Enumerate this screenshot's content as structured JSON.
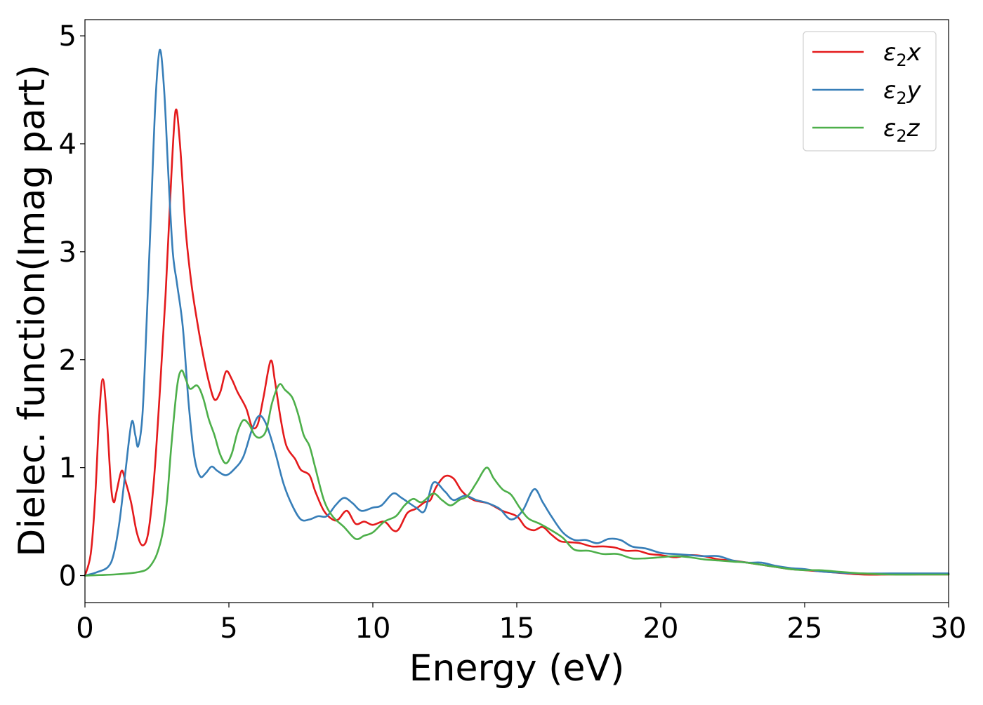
{
  "chart_data": {
    "type": "line",
    "xlabel": "Energy (eV)",
    "ylabel": "Dielec. function(Imag part)",
    "xlim": [
      0,
      30
    ],
    "ylim": [
      -0.25,
      5.15
    ],
    "xticks": [
      0,
      5,
      10,
      15,
      20,
      25,
      30
    ],
    "yticks": [
      0,
      1,
      2,
      3,
      4,
      5
    ],
    "grid": false,
    "legend_position": "top-right",
    "series": [
      {
        "name": "ε2x",
        "legend_base": "ε",
        "legend_sub": "2",
        "legend_suffix": "x",
        "color": "#e41a1c",
        "points": [
          [
            0,
            0
          ],
          [
            0.2,
            0.2
          ],
          [
            0.35,
            0.7
          ],
          [
            0.5,
            1.5
          ],
          [
            0.62,
            1.82
          ],
          [
            0.75,
            1.5
          ],
          [
            0.9,
            0.85
          ],
          [
            1.0,
            0.68
          ],
          [
            1.1,
            0.78
          ],
          [
            1.27,
            0.97
          ],
          [
            1.4,
            0.88
          ],
          [
            1.6,
            0.68
          ],
          [
            1.8,
            0.4
          ],
          [
            2.0,
            0.28
          ],
          [
            2.2,
            0.4
          ],
          [
            2.4,
            0.9
          ],
          [
            2.6,
            1.7
          ],
          [
            2.8,
            2.6
          ],
          [
            3.0,
            3.7
          ],
          [
            3.15,
            4.31
          ],
          [
            3.3,
            4.0
          ],
          [
            3.5,
            3.2
          ],
          [
            3.7,
            2.7
          ],
          [
            3.9,
            2.35
          ],
          [
            4.1,
            2.05
          ],
          [
            4.3,
            1.8
          ],
          [
            4.5,
            1.63
          ],
          [
            4.7,
            1.7
          ],
          [
            4.9,
            1.89
          ],
          [
            5.1,
            1.82
          ],
          [
            5.3,
            1.7
          ],
          [
            5.6,
            1.55
          ],
          [
            5.8,
            1.38
          ],
          [
            6.0,
            1.4
          ],
          [
            6.2,
            1.65
          ],
          [
            6.45,
            1.99
          ],
          [
            6.6,
            1.8
          ],
          [
            6.8,
            1.45
          ],
          [
            7.0,
            1.2
          ],
          [
            7.3,
            1.08
          ],
          [
            7.5,
            0.98
          ],
          [
            7.8,
            0.93
          ],
          [
            8.0,
            0.78
          ],
          [
            8.3,
            0.6
          ],
          [
            8.6,
            0.52
          ],
          [
            8.8,
            0.52
          ],
          [
            9.1,
            0.6
          ],
          [
            9.4,
            0.48
          ],
          [
            9.7,
            0.5
          ],
          [
            10.0,
            0.47
          ],
          [
            10.4,
            0.5
          ],
          [
            10.7,
            0.42
          ],
          [
            10.9,
            0.43
          ],
          [
            11.2,
            0.58
          ],
          [
            11.5,
            0.62
          ],
          [
            11.8,
            0.68
          ],
          [
            12.0,
            0.7
          ],
          [
            12.2,
            0.82
          ],
          [
            12.5,
            0.92
          ],
          [
            12.8,
            0.9
          ],
          [
            13.1,
            0.78
          ],
          [
            13.5,
            0.7
          ],
          [
            14.0,
            0.67
          ],
          [
            14.5,
            0.6
          ],
          [
            15.0,
            0.55
          ],
          [
            15.3,
            0.45
          ],
          [
            15.6,
            0.42
          ],
          [
            15.9,
            0.45
          ],
          [
            16.2,
            0.38
          ],
          [
            16.5,
            0.32
          ],
          [
            16.8,
            0.31
          ],
          [
            17.2,
            0.3
          ],
          [
            17.6,
            0.27
          ],
          [
            18.0,
            0.27
          ],
          [
            18.4,
            0.26
          ],
          [
            18.8,
            0.23
          ],
          [
            19.2,
            0.23
          ],
          [
            19.6,
            0.2
          ],
          [
            20.0,
            0.19
          ],
          [
            20.5,
            0.17
          ],
          [
            21.0,
            0.19
          ],
          [
            21.5,
            0.18
          ],
          [
            22.0,
            0.15
          ],
          [
            22.5,
            0.14
          ],
          [
            23.0,
            0.12
          ],
          [
            23.5,
            0.1
          ],
          [
            24.0,
            0.08
          ],
          [
            24.5,
            0.06
          ],
          [
            25.0,
            0.05
          ],
          [
            25.5,
            0.04
          ],
          [
            26.0,
            0.03
          ],
          [
            27.0,
            0.01
          ],
          [
            28.0,
            0.01
          ],
          [
            29.0,
            0.01
          ],
          [
            30.0,
            0.01
          ]
        ]
      },
      {
        "name": "ε2y",
        "legend_base": "ε",
        "legend_sub": "2",
        "legend_suffix": "y",
        "color": "#377eb8",
        "points": [
          [
            0,
            0
          ],
          [
            0.4,
            0.03
          ],
          [
            0.8,
            0.08
          ],
          [
            1.0,
            0.2
          ],
          [
            1.2,
            0.5
          ],
          [
            1.4,
            0.95
          ],
          [
            1.62,
            1.42
          ],
          [
            1.75,
            1.3
          ],
          [
            1.85,
            1.2
          ],
          [
            2.0,
            1.5
          ],
          [
            2.15,
            2.4
          ],
          [
            2.3,
            3.4
          ],
          [
            2.45,
            4.4
          ],
          [
            2.6,
            4.87
          ],
          [
            2.75,
            4.5
          ],
          [
            2.9,
            3.7
          ],
          [
            3.05,
            3.0
          ],
          [
            3.2,
            2.7
          ],
          [
            3.4,
            2.3
          ],
          [
            3.6,
            1.6
          ],
          [
            3.8,
            1.1
          ],
          [
            4.0,
            0.92
          ],
          [
            4.2,
            0.95
          ],
          [
            4.4,
            1.01
          ],
          [
            4.6,
            0.97
          ],
          [
            4.9,
            0.93
          ],
          [
            5.2,
            0.99
          ],
          [
            5.5,
            1.1
          ],
          [
            5.8,
            1.35
          ],
          [
            6.05,
            1.48
          ],
          [
            6.3,
            1.4
          ],
          [
            6.6,
            1.15
          ],
          [
            6.9,
            0.85
          ],
          [
            7.2,
            0.65
          ],
          [
            7.5,
            0.52
          ],
          [
            7.8,
            0.52
          ],
          [
            8.1,
            0.55
          ],
          [
            8.4,
            0.55
          ],
          [
            8.7,
            0.65
          ],
          [
            9.0,
            0.72
          ],
          [
            9.3,
            0.67
          ],
          [
            9.6,
            0.6
          ],
          [
            10.0,
            0.63
          ],
          [
            10.3,
            0.65
          ],
          [
            10.7,
            0.76
          ],
          [
            11.0,
            0.72
          ],
          [
            11.5,
            0.63
          ],
          [
            11.8,
            0.6
          ],
          [
            12.1,
            0.86
          ],
          [
            12.5,
            0.78
          ],
          [
            12.8,
            0.7
          ],
          [
            13.2,
            0.74
          ],
          [
            13.6,
            0.7
          ],
          [
            14.0,
            0.67
          ],
          [
            14.4,
            0.62
          ],
          [
            14.8,
            0.52
          ],
          [
            15.2,
            0.6
          ],
          [
            15.6,
            0.8
          ],
          [
            15.9,
            0.68
          ],
          [
            16.2,
            0.55
          ],
          [
            16.6,
            0.4
          ],
          [
            17.0,
            0.33
          ],
          [
            17.4,
            0.33
          ],
          [
            17.8,
            0.3
          ],
          [
            18.2,
            0.34
          ],
          [
            18.6,
            0.33
          ],
          [
            19.0,
            0.27
          ],
          [
            19.5,
            0.25
          ],
          [
            20.0,
            0.21
          ],
          [
            20.5,
            0.2
          ],
          [
            21.0,
            0.19
          ],
          [
            21.5,
            0.18
          ],
          [
            22.0,
            0.18
          ],
          [
            22.5,
            0.14
          ],
          [
            23.0,
            0.12
          ],
          [
            23.5,
            0.12
          ],
          [
            24.0,
            0.09
          ],
          [
            24.5,
            0.07
          ],
          [
            25.0,
            0.06
          ],
          [
            25.5,
            0.04
          ],
          [
            26.0,
            0.03
          ],
          [
            27.0,
            0.02
          ],
          [
            28.0,
            0.02
          ],
          [
            29.0,
            0.02
          ],
          [
            30.0,
            0.02
          ]
        ]
      },
      {
        "name": "ε2z",
        "legend_base": "ε",
        "legend_sub": "2",
        "legend_suffix": "z",
        "color": "#4daf4a",
        "points": [
          [
            0,
            0
          ],
          [
            0.5,
            0.005
          ],
          [
            1.0,
            0.01
          ],
          [
            1.5,
            0.02
          ],
          [
            1.8,
            0.03
          ],
          [
            2.1,
            0.05
          ],
          [
            2.3,
            0.1
          ],
          [
            2.5,
            0.2
          ],
          [
            2.7,
            0.4
          ],
          [
            2.85,
            0.7
          ],
          [
            3.0,
            1.2
          ],
          [
            3.2,
            1.75
          ],
          [
            3.35,
            1.9
          ],
          [
            3.5,
            1.82
          ],
          [
            3.65,
            1.73
          ],
          [
            3.9,
            1.76
          ],
          [
            4.1,
            1.65
          ],
          [
            4.3,
            1.45
          ],
          [
            4.5,
            1.3
          ],
          [
            4.7,
            1.12
          ],
          [
            4.9,
            1.04
          ],
          [
            5.1,
            1.13
          ],
          [
            5.3,
            1.33
          ],
          [
            5.5,
            1.44
          ],
          [
            5.7,
            1.4
          ],
          [
            5.9,
            1.3
          ],
          [
            6.1,
            1.28
          ],
          [
            6.3,
            1.35
          ],
          [
            6.5,
            1.6
          ],
          [
            6.75,
            1.77
          ],
          [
            6.95,
            1.72
          ],
          [
            7.2,
            1.65
          ],
          [
            7.4,
            1.5
          ],
          [
            7.6,
            1.3
          ],
          [
            7.8,
            1.2
          ],
          [
            8.0,
            1.0
          ],
          [
            8.3,
            0.7
          ],
          [
            8.6,
            0.55
          ],
          [
            9.0,
            0.45
          ],
          [
            9.4,
            0.34
          ],
          [
            9.7,
            0.37
          ],
          [
            10.0,
            0.4
          ],
          [
            10.4,
            0.5
          ],
          [
            10.8,
            0.55
          ],
          [
            11.1,
            0.65
          ],
          [
            11.4,
            0.71
          ],
          [
            11.7,
            0.68
          ],
          [
            12.1,
            0.76
          ],
          [
            12.4,
            0.7
          ],
          [
            12.7,
            0.65
          ],
          [
            13.0,
            0.7
          ],
          [
            13.3,
            0.74
          ],
          [
            13.6,
            0.86
          ],
          [
            13.95,
            1.0
          ],
          [
            14.2,
            0.9
          ],
          [
            14.5,
            0.8
          ],
          [
            14.8,
            0.75
          ],
          [
            15.1,
            0.63
          ],
          [
            15.4,
            0.53
          ],
          [
            15.8,
            0.48
          ],
          [
            16.2,
            0.42
          ],
          [
            16.6,
            0.35
          ],
          [
            17.0,
            0.24
          ],
          [
            17.5,
            0.23
          ],
          [
            18.0,
            0.2
          ],
          [
            18.5,
            0.2
          ],
          [
            19.0,
            0.16
          ],
          [
            19.5,
            0.16
          ],
          [
            20.0,
            0.17
          ],
          [
            20.5,
            0.18
          ],
          [
            21.0,
            0.17
          ],
          [
            21.5,
            0.15
          ],
          [
            22.0,
            0.14
          ],
          [
            22.5,
            0.13
          ],
          [
            23.0,
            0.12
          ],
          [
            23.5,
            0.1
          ],
          [
            24.0,
            0.08
          ],
          [
            24.5,
            0.06
          ],
          [
            25.0,
            0.05
          ],
          [
            25.5,
            0.05
          ],
          [
            26.0,
            0.04
          ],
          [
            27.0,
            0.02
          ],
          [
            28.0,
            0.01
          ],
          [
            29.0,
            0.01
          ],
          [
            30.0,
            0.01
          ]
        ]
      }
    ]
  }
}
